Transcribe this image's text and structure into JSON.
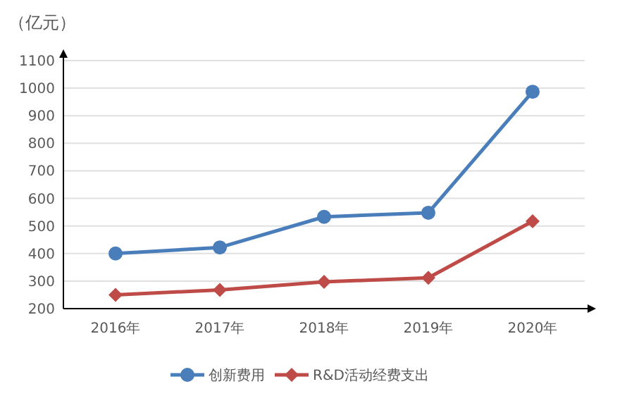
{
  "chart_data": {
    "type": "line",
    "ylabel": "（亿元）",
    "categories": [
      "2016年",
      "2017年",
      "2018年",
      "2019年",
      "2020年"
    ],
    "series": [
      {
        "name": "创新费用",
        "color": "#4a7ebb",
        "marker": "circle",
        "values": [
          400,
          422,
          533,
          548,
          987
        ]
      },
      {
        "name": "R&D活动经费支出",
        "color": "#be4b48",
        "marker": "diamond",
        "values": [
          250,
          268,
          297,
          312,
          517
        ]
      }
    ],
    "ylim": [
      200,
      1100
    ],
    "yticks": [
      200,
      300,
      400,
      500,
      600,
      700,
      800,
      900,
      1000,
      1100
    ],
    "grid": "y",
    "legend": "bottom"
  }
}
